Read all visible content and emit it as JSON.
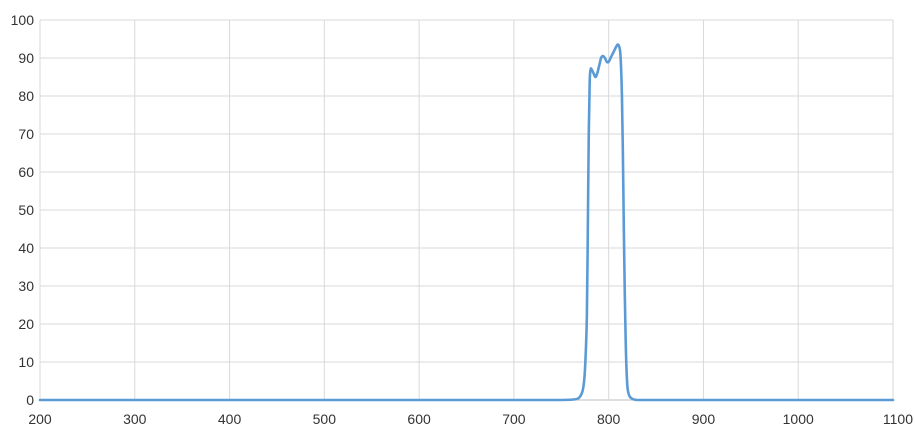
{
  "chart_data": {
    "type": "line",
    "title": "",
    "xlabel": "",
    "ylabel": "",
    "xlim": [
      200,
      1100
    ],
    "ylim": [
      0,
      100
    ],
    "x_ticks": [
      200,
      300,
      400,
      500,
      600,
      700,
      800,
      900,
      1000,
      1100
    ],
    "y_ticks": [
      0,
      10,
      20,
      30,
      40,
      50,
      60,
      70,
      80,
      90,
      100
    ],
    "x_tick_labels": [
      "200",
      "300",
      "400",
      "500",
      "600",
      "700",
      "800",
      "900",
      "1000",
      "1100"
    ],
    "y_tick_labels": [
      "0",
      "10",
      "20",
      "30",
      "40",
      "50",
      "60",
      "70",
      "80",
      "90",
      "100"
    ],
    "grid": true,
    "legend": "none",
    "series": [
      {
        "color": "#5b9bd5",
        "x": [
          200,
          300,
          400,
          500,
          600,
          700,
          750,
          765,
          770,
          773,
          775,
          777,
          778,
          779,
          780,
          781,
          782,
          784,
          786,
          788,
          790,
          792,
          794,
          796,
          798,
          800,
          802,
          804,
          806,
          808,
          810,
          812,
          813,
          814,
          815,
          816,
          817,
          818,
          819,
          820,
          822,
          825,
          830,
          840,
          900,
          1000,
          1100
        ],
        "y": [
          0,
          0,
          0,
          0,
          0,
          0,
          0,
          0.2,
          1,
          3,
          8,
          22,
          45,
          70,
          84,
          87,
          87,
          86,
          85,
          86,
          88,
          90,
          90.5,
          90,
          89,
          89,
          90,
          91,
          92,
          93,
          93.5,
          92,
          88,
          80,
          65,
          45,
          28,
          15,
          7,
          3,
          1,
          0.3,
          0,
          0,
          0,
          0,
          0
        ]
      }
    ]
  }
}
